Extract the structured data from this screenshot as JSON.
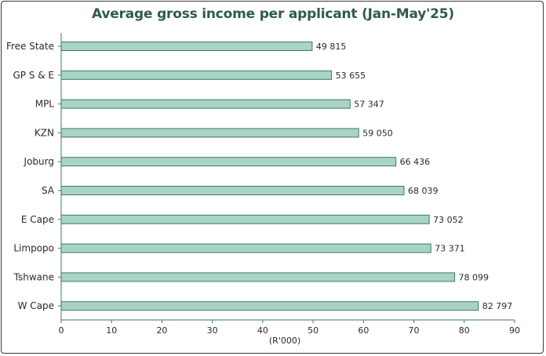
{
  "chart_data": {
    "type": "bar",
    "orientation": "horizontal",
    "title": "Average gross income per applicant (Jan-May'25)",
    "xlabel": "(R'000)",
    "ylabel": "",
    "xlim": [
      0,
      90
    ],
    "xticks": [
      0,
      10,
      20,
      30,
      40,
      50,
      60,
      70,
      80,
      90
    ],
    "categories": [
      "Free State",
      "GP S & E",
      "MPL",
      "KZN",
      "Joburg",
      "SA",
      "E Cape",
      "Limpopo",
      "Tshwane",
      "W Cape"
    ],
    "values": [
      49.815,
      53.655,
      57.347,
      59.05,
      66.436,
      68.039,
      73.052,
      73.371,
      78.099,
      82.797
    ],
    "value_labels": [
      "49 815",
      "53 655",
      "57 347",
      "59 050",
      "66 436",
      "68 039",
      "73 052",
      "73 371",
      "78 099",
      "82 797"
    ],
    "colors": {
      "bar_fill": "#a9d3c5",
      "bar_stroke": "#3e7a66",
      "title": "#2f5a4a",
      "axis": "#3e7a66"
    }
  }
}
